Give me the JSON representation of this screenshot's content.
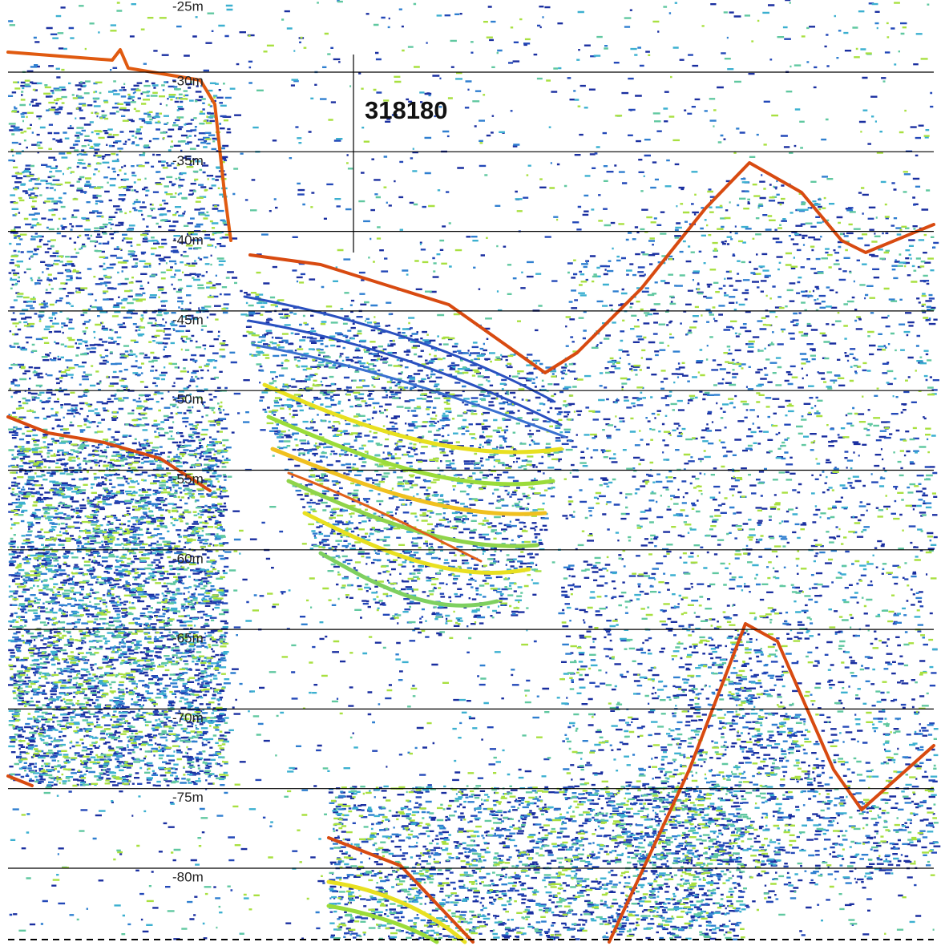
{
  "depth_labels": [
    "-25m",
    "-30m",
    "-35m",
    "-40m",
    "-45m",
    "-50m",
    "-55m",
    "-60m",
    "-65m",
    "-70m",
    "-75m",
    "-80m"
  ],
  "marker_label": "318180"
}
